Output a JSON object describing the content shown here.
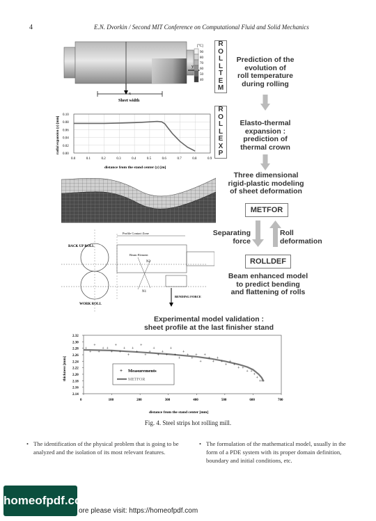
{
  "header": {
    "page_number": "4",
    "running_title": "E.N. Dvorkin / Second MIT Conference on Computational Fluid and Solid Mechanics"
  },
  "figure": {
    "roll_temp_panel": {
      "unit": "[°C]",
      "scale_labels": [
        "90",
        "80",
        "70",
        "60",
        "50",
        "40"
      ],
      "axis_x": "x",
      "axis_y": "y",
      "sheet_width_label": "Sheet width"
    },
    "expansion_chart": {
      "ylabel": "radial expansion (y) [mm]",
      "xlabel": "distance from the stand center (y) [m]"
    },
    "rolldef_panel": {
      "back_up_roll": "BACK UP ROLL",
      "work_roll": "WORK ROLL",
      "contact_zone": "Profile Contact Zone",
      "beam_element": "Beam Element",
      "bending_force": "BENDING FORCE",
      "n1": "N1",
      "n2": "N2"
    },
    "labels": {
      "rolltem_letters": [
        "R",
        "O",
        "L",
        "L",
        "T",
        "E",
        "M"
      ],
      "rollexp_letters": [
        "R",
        "O",
        "L",
        "L",
        "E",
        "X",
        "P"
      ],
      "metfor": "METFOR",
      "rolldef": "ROLLDEF",
      "separating_force": "Separating\nforce",
      "roll_deformation": "Roll\ndeformation"
    },
    "steps": {
      "rolltem": "Prediction of the\nevolution of\nroll temperature\nduring rolling",
      "rollexp": "Elasto-thermal\nexpansion :\nprediction of\nthermal crown",
      "metfor": "Three dimensional\nrigid-plastic modeling\nof sheet deformation",
      "rolldef": "Beam enhanced model\nto predict bending\nand flattening of rolls"
    },
    "validation_title": "Experimental model validation :\nsheet profile at the last finisher stand",
    "validation_chart": {
      "ylabel": "thickness [mm]",
      "xlabel": "distance from the stand center [mm]",
      "legend_measurements": "Measurements",
      "legend_metfor": "METFOR"
    },
    "caption": "Fig. 4. Steel strips hot rolling mill."
  },
  "body": {
    "left": "The identification of the physical problem that is going to be analyzed and the isolation of its most relevant features.",
    "right": "The formulation of the mathematical model, usually in the form of a PDE system with its proper domain definition, boundary and initial conditions, etc."
  },
  "banner": {
    "logo": "homeofpdf.com",
    "footer_text": "ore please visit: https://homeofpdf.com"
  },
  "chart_data": [
    {
      "type": "line",
      "xlabel": "distance from the stand center (y) [m]",
      "ylabel": "radial expansion (y) [mm]",
      "xlim": [
        0,
        0.9
      ],
      "ylim": [
        0,
        0.1
      ],
      "x_ticks": [
        "0.0",
        "0.1",
        "0.2",
        "0.3",
        "0.4",
        "0.5",
        "0.6",
        "0.7",
        "0.8",
        "0.9"
      ],
      "y_ticks": [
        "0.00",
        "0.02",
        "0.04",
        "0.06",
        "0.08",
        "0.10"
      ],
      "grid": true,
      "series": [
        {
          "x": [
            0,
            0.1,
            0.2,
            0.3,
            0.4,
            0.45,
            0.5,
            0.55,
            0.58,
            0.6,
            0.62,
            0.65,
            0.7,
            0.75,
            0.8
          ],
          "values": [
            0.076,
            0.076,
            0.076,
            0.077,
            0.078,
            0.079,
            0.08,
            0.081,
            0.08,
            0.075,
            0.065,
            0.05,
            0.03,
            0.015,
            0.005
          ]
        }
      ]
    },
    {
      "type": "scatter",
      "title": "Experimental model validation : sheet profile at the last finisher stand",
      "xlabel": "distance from the stand center [mm]",
      "ylabel": "thickness [mm]",
      "xlim": [
        0,
        700
      ],
      "ylim": [
        2.14,
        2.32
      ],
      "x_ticks": [
        "0",
        "100",
        "200",
        "300",
        "400",
        "500",
        "600",
        "700"
      ],
      "y_ticks": [
        "2.14",
        "2.16",
        "2.18",
        "2.20",
        "2.22",
        "2.24",
        "2.26",
        "2.28",
        "2.30",
        "2.32"
      ],
      "legend": "inside-lower-left",
      "series": [
        {
          "name": "Measurements",
          "x": [
            10,
            25,
            40,
            55,
            70,
            85,
            100,
            115,
            130,
            145,
            160,
            175,
            190,
            205,
            220,
            235,
            250,
            265,
            280,
            295,
            310,
            325,
            340,
            355,
            370,
            385,
            400,
            415,
            430,
            445,
            460,
            475,
            490,
            505,
            520,
            535,
            550,
            565,
            580,
            595,
            605,
            615,
            625,
            632
          ],
          "values": [
            2.28,
            2.27,
            2.29,
            2.27,
            2.28,
            2.28,
            2.27,
            2.29,
            2.27,
            2.28,
            2.26,
            2.28,
            2.27,
            2.29,
            2.26,
            2.27,
            2.28,
            2.26,
            2.27,
            2.26,
            2.28,
            2.26,
            2.25,
            2.27,
            2.26,
            2.25,
            2.26,
            2.24,
            2.26,
            2.25,
            2.24,
            2.25,
            2.24,
            2.23,
            2.24,
            2.23,
            2.22,
            2.22,
            2.21,
            2.21,
            2.2,
            2.19,
            2.18,
            2.18
          ]
        },
        {
          "name": "METFOR",
          "x": [
            0,
            100,
            200,
            300,
            400,
            450,
            500,
            550,
            580,
            600,
            620,
            630,
            638
          ],
          "values": [
            2.275,
            2.273,
            2.268,
            2.262,
            2.254,
            2.248,
            2.24,
            2.23,
            2.222,
            2.214,
            2.2,
            2.19,
            2.178
          ]
        }
      ]
    }
  ]
}
